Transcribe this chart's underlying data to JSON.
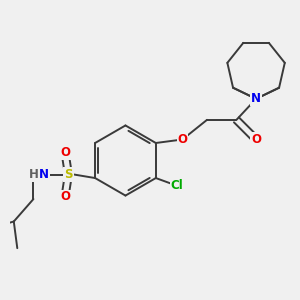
{
  "bg_color": "#f0f0f0",
  "bond_color": "#3a3a3a",
  "bond_width": 1.4,
  "atom_colors": {
    "N": "#0000ee",
    "O": "#ee0000",
    "S": "#bbbb00",
    "Cl": "#00aa00",
    "H": "#606060",
    "C": "#3a3a3a"
  },
  "font_size": 8.5,
  "fig_size": [
    3.0,
    3.0
  ],
  "dpi": 100
}
